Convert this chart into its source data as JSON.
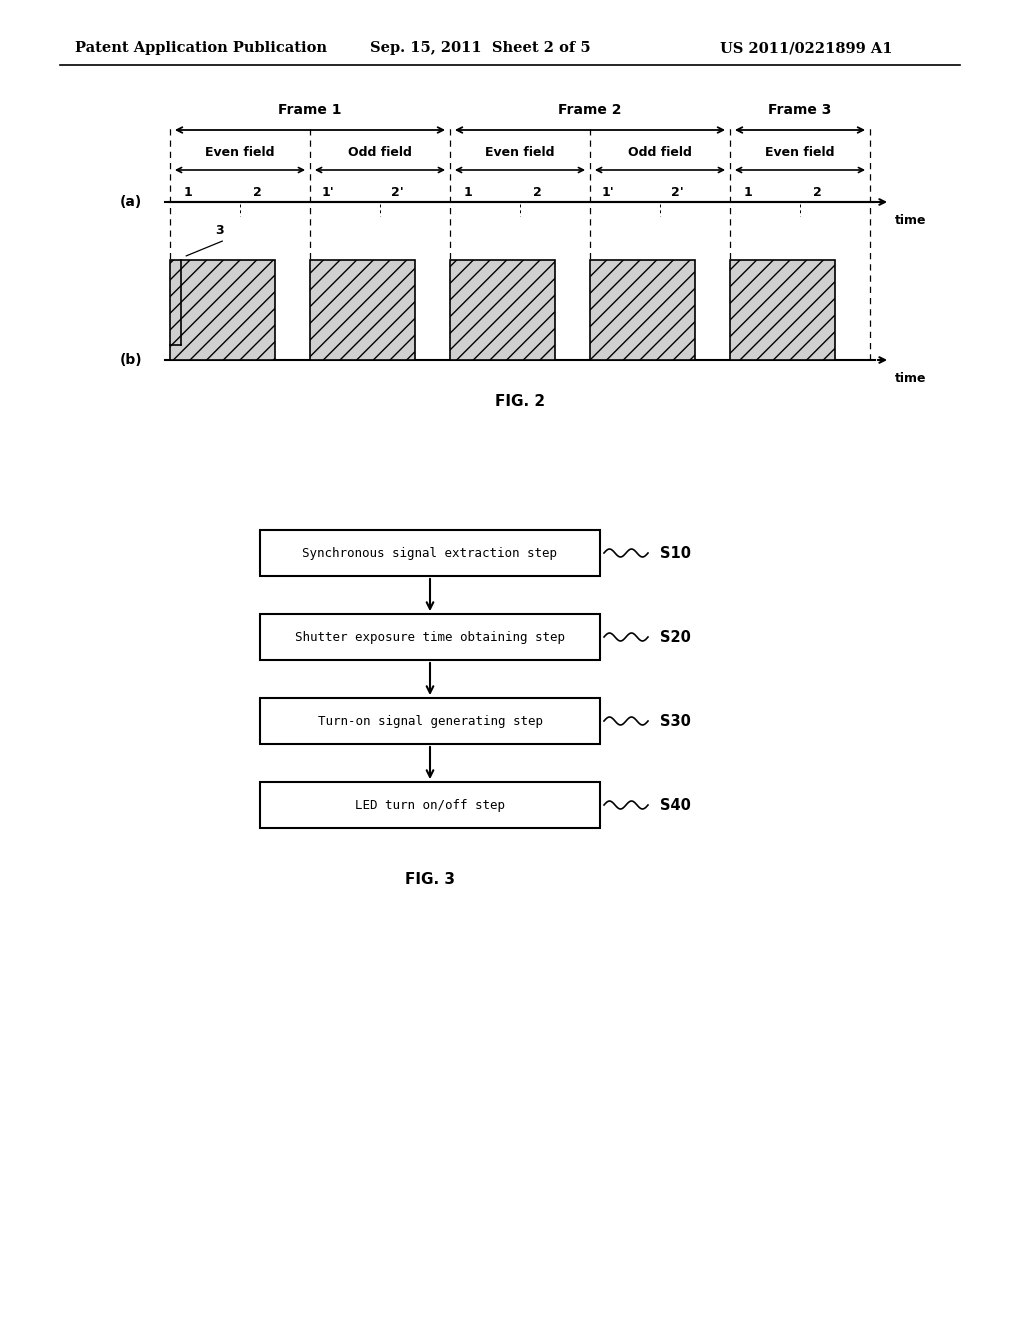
{
  "bg_color": "#ffffff",
  "header_left": "Patent Application Publication",
  "header_center": "Sep. 15, 2011  Sheet 2 of 5",
  "header_right": "US 2011/0221899 A1",
  "fig2_label": "FIG. 2",
  "fig3_label": "FIG. 3",
  "frame_labels": [
    "Frame 1",
    "Frame 2",
    "Frame 3"
  ],
  "field_labels": [
    "Even field",
    "Odd field",
    "Even field",
    "Odd field",
    "Even field"
  ],
  "tick_labels_a": [
    "1",
    "2",
    "1'",
    "2'",
    "1",
    "2",
    "1'",
    "2'",
    "1",
    "2"
  ],
  "row_a_label": "(a)",
  "row_b_label": "(b)",
  "time_label": "time",
  "annotation_3": "3",
  "flowchart_steps": [
    {
      "label": "Synchronous signal extraction step",
      "tag": "S10"
    },
    {
      "label": "Shutter exposure time obtaining step",
      "tag": "S20"
    },
    {
      "label": "Turn-on signal generating step",
      "tag": "S30"
    },
    {
      "label": "LED turn on/off step",
      "tag": "S40"
    }
  ]
}
